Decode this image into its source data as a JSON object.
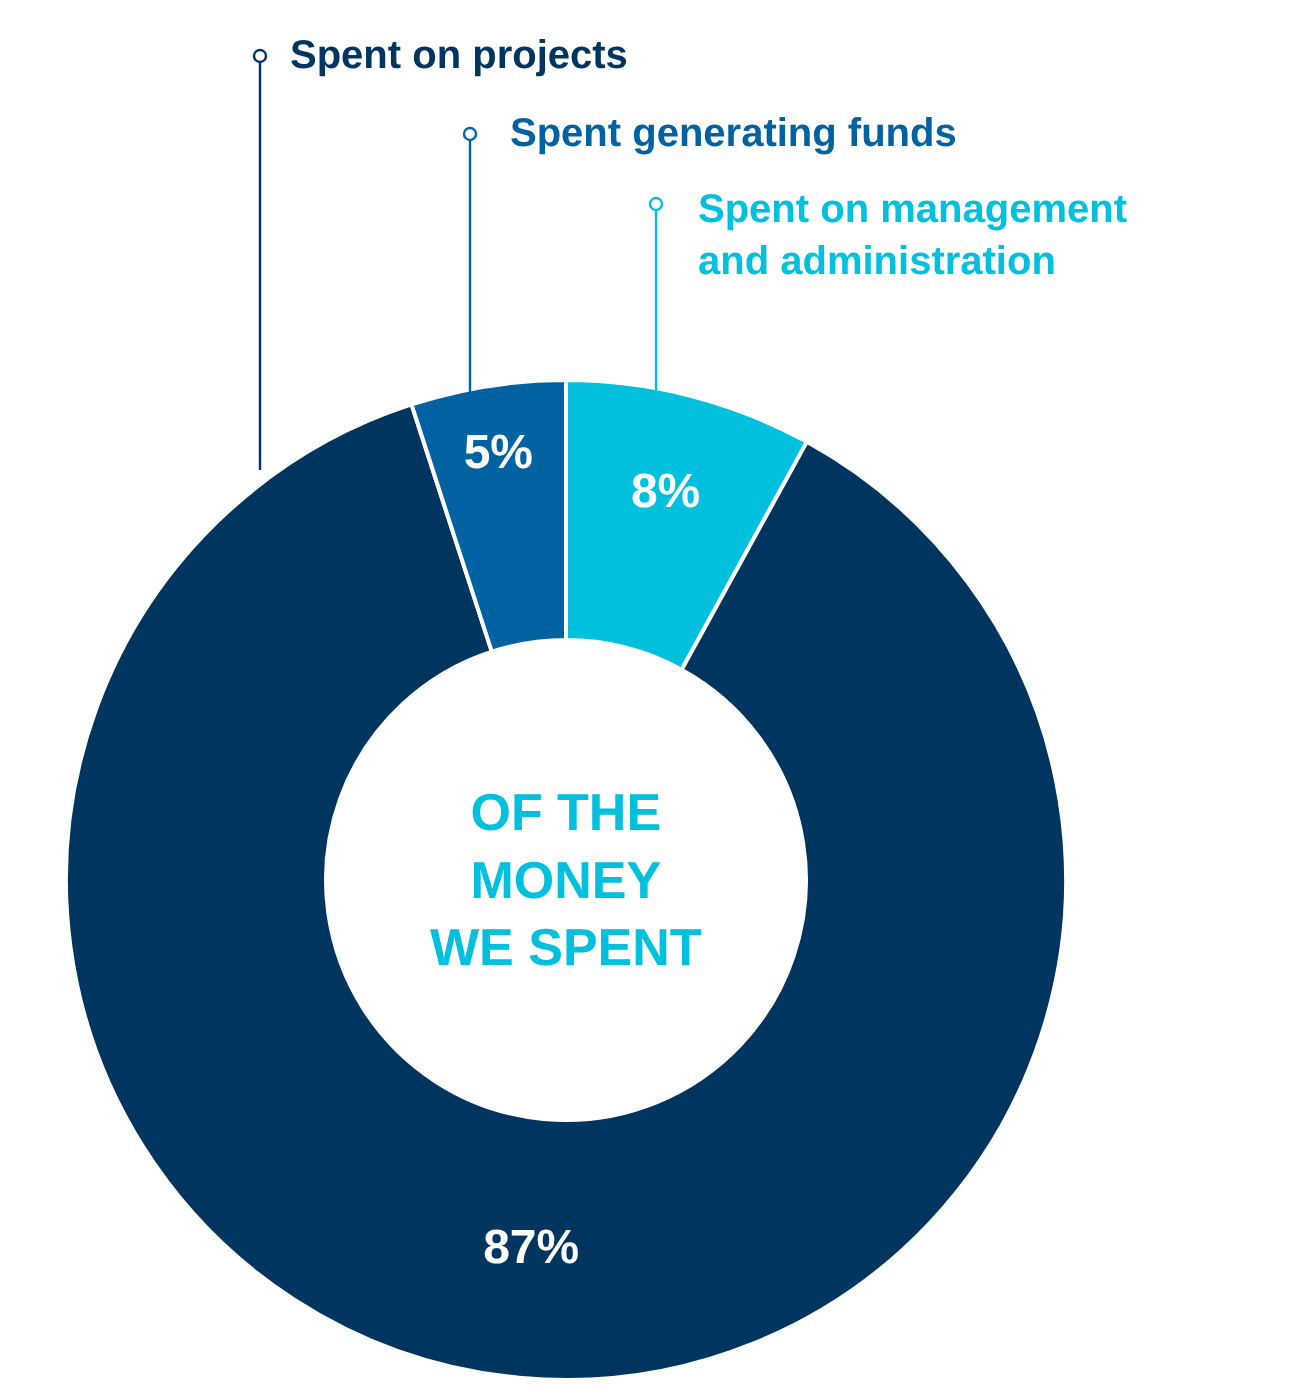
{
  "chart_data": {
    "type": "donut",
    "categories": [
      "Spent on management\nand administration",
      "Spent on projects",
      "Spent generating funds"
    ],
    "values": [
      8,
      87,
      5
    ],
    "value_labels": [
      "8%",
      "87%",
      "5%"
    ],
    "colors": [
      "#00c0de",
      "#003560",
      "#0062a0"
    ],
    "annotations": [
      "OF THE\nMONEY\nWE SPENT"
    ],
    "legend": "top"
  }
}
